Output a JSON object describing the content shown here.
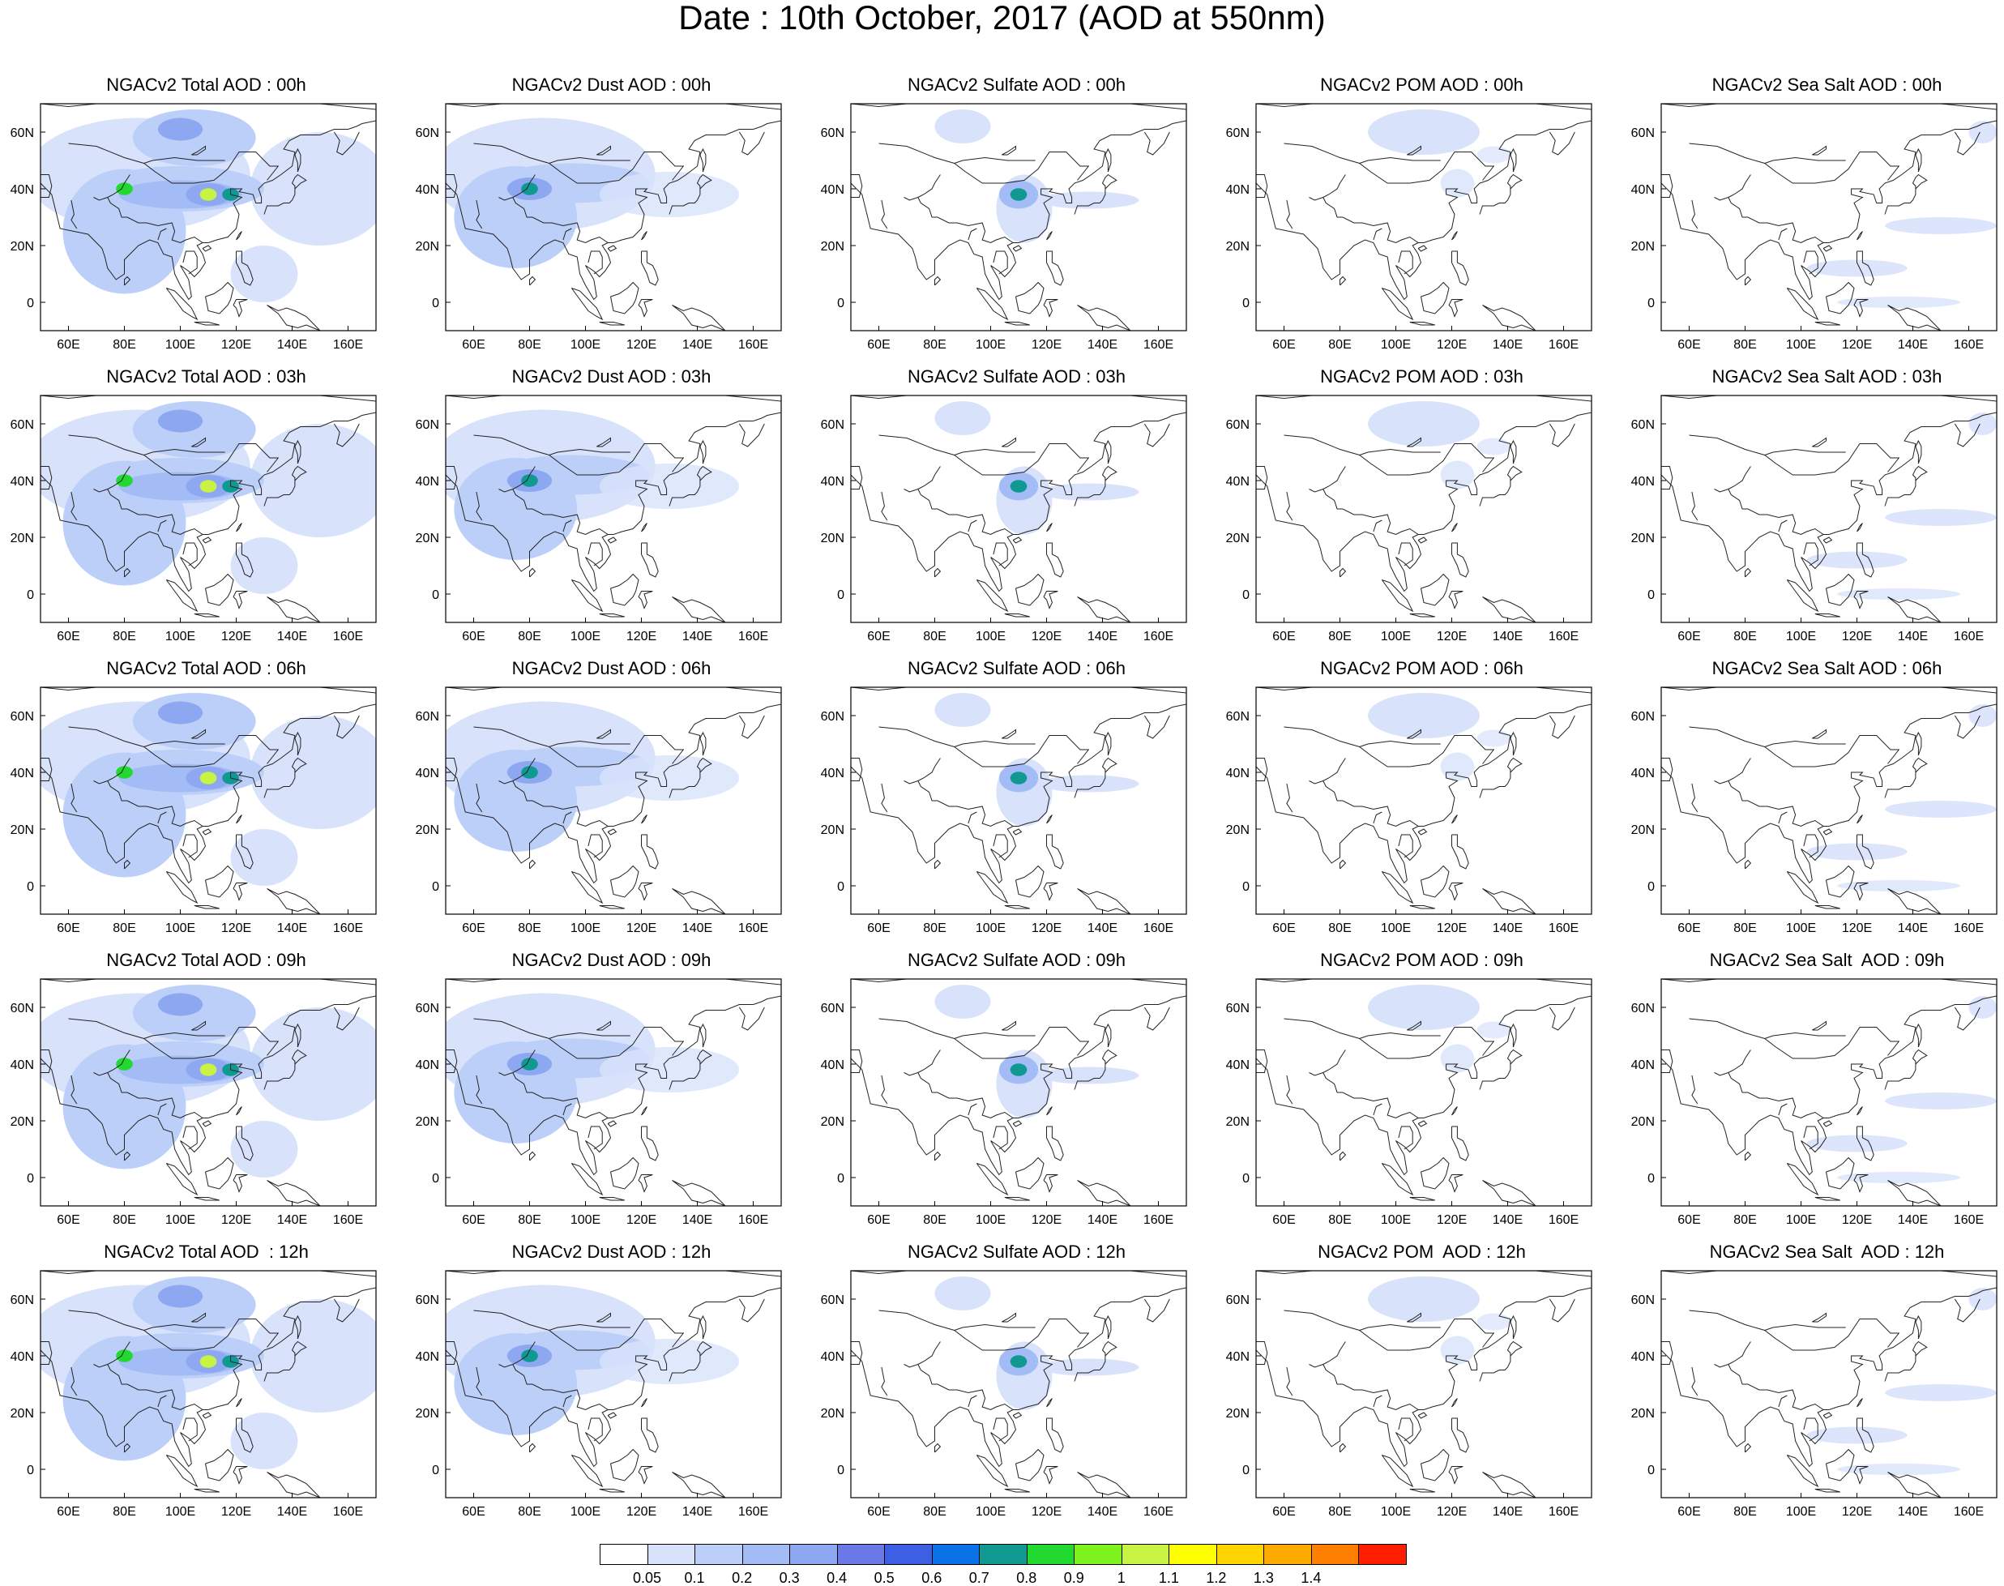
{
  "title": "Date : 10th October, 2017 (AOD at 550nm)",
  "axis": {
    "x_ticks": [
      "60E",
      "80E",
      "100E",
      "120E",
      "140E",
      "160E"
    ],
    "x_tick_values": [
      60,
      80,
      100,
      120,
      140,
      160
    ],
    "y_ticks": [
      "60N",
      "40N",
      "20N",
      "0"
    ],
    "y_tick_values": [
      60,
      40,
      20,
      0
    ],
    "lon_range": [
      50,
      170
    ],
    "lat_range": [
      -10,
      70
    ]
  },
  "columns": [
    {
      "key": "total",
      "titles": [
        "NGACv2 Total AOD : 00h",
        "NGACv2 Total AOD : 03h",
        "NGACv2 Total AOD : 06h",
        "NGACv2 Total AOD : 09h",
        "NGACv2 Total AOD  : 12h"
      ]
    },
    {
      "key": "dust",
      "titles": [
        "NGACv2 Dust AOD : 00h",
        "NGACv2 Dust AOD : 03h",
        "NGACv2 Dust AOD : 06h",
        "NGACv2 Dust AOD : 09h",
        "NGACv2 Dust AOD : 12h"
      ]
    },
    {
      "key": "sulfate",
      "titles": [
        "NGACv2 Sulfate AOD : 00h",
        "NGACv2 Sulfate AOD : 03h",
        "NGACv2 Sulfate AOD : 06h",
        "NGACv2 Sulfate AOD : 09h",
        "NGACv2 Sulfate AOD : 12h"
      ]
    },
    {
      "key": "pom",
      "titles": [
        "NGACv2 POM AOD : 00h",
        "NGACv2 POM AOD : 03h",
        "NGACv2 POM AOD : 06h",
        "NGACv2 POM AOD : 09h",
        "NGACv2 POM  AOD : 12h"
      ]
    },
    {
      "key": "seasalt",
      "titles": [
        "NGACv2 Sea Salt AOD : 00h",
        "NGACv2 Sea Salt AOD : 03h",
        "NGACv2 Sea Salt AOD : 06h",
        "NGACv2 Sea Salt  AOD : 09h",
        "NGACv2 Sea Salt  AOD : 12h"
      ]
    }
  ],
  "colorbar": {
    "labels": [
      "0.05",
      "0.1",
      "0.2",
      "0.3",
      "0.4",
      "0.5",
      "0.6",
      "0.7",
      "0.8",
      "0.9",
      "1",
      "1.1",
      "1.2",
      "1.3",
      "1.4"
    ],
    "colors": [
      "#ffffff",
      "#d8e2fb",
      "#bccff9",
      "#a4bcf5",
      "#8ea7f1",
      "#6b78e8",
      "#3d5fe4",
      "#0b72e8",
      "#109991",
      "#22d92f",
      "#7ef21c",
      "#c8f244",
      "#ffff00",
      "#ffd400",
      "#ffaa00",
      "#ff8000",
      "#ff1e00"
    ]
  },
  "map_color_key": {
    "land_outline": "#222222"
  },
  "aerosol_features": {
    "total": [
      {
        "lon": 80,
        "lat": 40,
        "level": 0.9
      },
      {
        "lon": 110,
        "lat": 38,
        "level": 1.1
      },
      {
        "lon": 118,
        "lat": 38,
        "level": 0.8
      }
    ],
    "dust": [
      {
        "lon": 80,
        "lat": 40,
        "level": 0.8
      }
    ],
    "sulfate": [
      {
        "lon": 110,
        "lat": 38,
        "level": 0.8
      }
    ],
    "pom": [],
    "seasalt": []
  }
}
